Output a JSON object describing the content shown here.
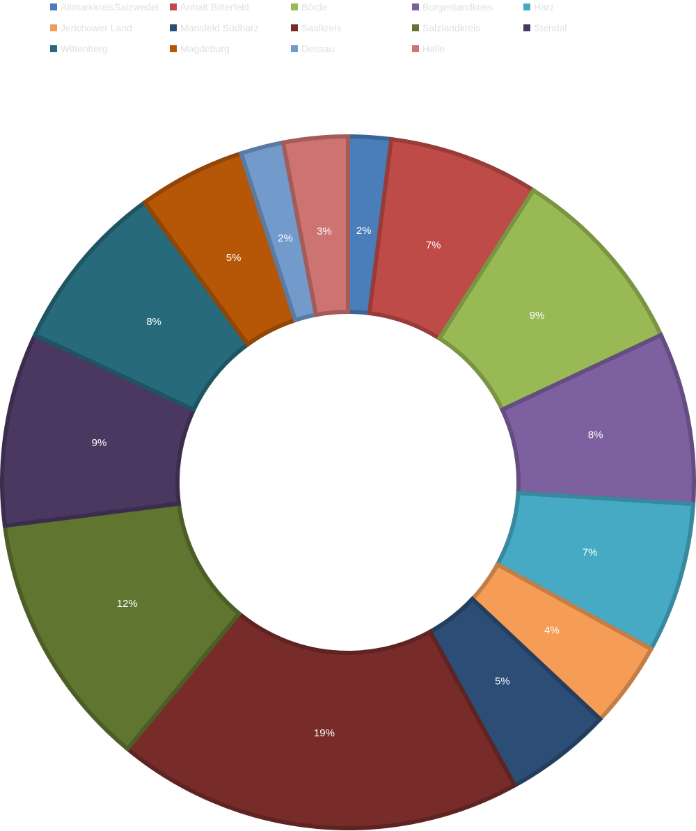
{
  "chart_data": {
    "type": "pie",
    "donut": true,
    "legend_position": "top",
    "slices": [
      {
        "name": "AltmarkkreisSalzwedel",
        "value": 2,
        "label": "2%",
        "color": "#4a7ebb"
      },
      {
        "name": "Anhalt Bitterfeld",
        "value": 7,
        "label": "7%",
        "color": "#be4b48"
      },
      {
        "name": "Börde",
        "value": 9,
        "label": "9%",
        "color": "#98b954"
      },
      {
        "name": "Burgenlandkreis",
        "value": 8,
        "label": "8%",
        "color": "#7d60a0"
      },
      {
        "name": "Harz",
        "value": 7,
        "label": "7%",
        "color": "#46aac5"
      },
      {
        "name": "Jerichower Land",
        "value": 4,
        "label": "4%",
        "color": "#f59d56"
      },
      {
        "name": "Mansfeld Südharz",
        "value": 5,
        "label": "5%",
        "color": "#2c4d75"
      },
      {
        "name": "Saalkreis",
        "value": 19,
        "label": "19%",
        "color": "#772c2a"
      },
      {
        "name": "Salzlandkreis",
        "value": 12,
        "label": "12%",
        "color": "#5f7530"
      },
      {
        "name": "Stendal",
        "value": 9,
        "label": "9%",
        "color": "#4b3861"
      },
      {
        "name": "Wittenberg",
        "value": 8,
        "label": "8%",
        "color": "#276a7c"
      },
      {
        "name": "Magdeburg",
        "value": 5,
        "label": "5%",
        "color": "#b65708"
      },
      {
        "name": "Dessau",
        "value": 2,
        "label": "2%",
        "color": "#729aca"
      },
      {
        "name": "Halle",
        "value": 3,
        "label": "3%",
        "color": "#cd7371"
      }
    ]
  }
}
